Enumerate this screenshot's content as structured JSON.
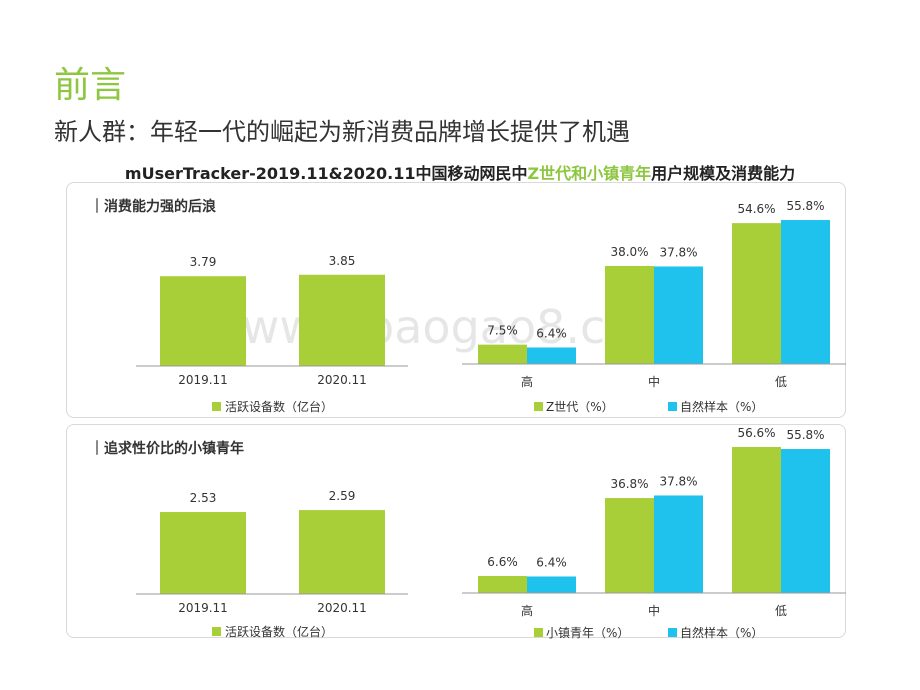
{
  "title": "前言",
  "subtitle": "新人群：年轻一代的崛起为新消费品牌增长提供了机遇",
  "heading": {
    "prefix": "mUserTracker-2019.11&2020.11中国移动网民中",
    "highlight": "Z世代和小镇青年",
    "suffix": "用户规模及消费能力"
  },
  "watermark": "www.baogao8.com",
  "colors": {
    "green": "#a8cf38",
    "blue": "#1ec2ec",
    "accent": "#8dc63f"
  },
  "chart_data": [
    {
      "type": "bar",
      "section": "｜消费能力强的后浪",
      "categories": [
        "2019.11",
        "2020.11"
      ],
      "series": [
        {
          "name": "活跃设备数（亿台）",
          "values": [
            3.79,
            3.85
          ]
        }
      ],
      "value_labels": [
        "3.79",
        "3.85"
      ]
    },
    {
      "type": "bar",
      "categories": [
        "高",
        "中",
        "低"
      ],
      "series": [
        {
          "name": "Z世代（%）",
          "values": [
            7.5,
            38.0,
            54.6
          ],
          "labels": [
            "7.5%",
            "38.0%",
            "54.6%"
          ]
        },
        {
          "name": "自然样本（%）",
          "values": [
            6.4,
            37.8,
            55.8
          ],
          "labels": [
            "6.4%",
            "37.8%",
            "55.8%"
          ]
        }
      ]
    },
    {
      "type": "bar",
      "section": "｜追求性价比的小镇青年",
      "categories": [
        "2019.11",
        "2020.11"
      ],
      "series": [
        {
          "name": "活跃设备数（亿台）",
          "values": [
            2.53,
            2.59
          ]
        }
      ],
      "value_labels": [
        "2.53",
        "2.59"
      ]
    },
    {
      "type": "bar",
      "categories": [
        "高",
        "中",
        "低"
      ],
      "series": [
        {
          "name": "小镇青年（%）",
          "values": [
            6.6,
            36.8,
            56.6
          ],
          "labels": [
            "6.6%",
            "36.8%",
            "56.6%"
          ]
        },
        {
          "name": "自然样本（%）",
          "values": [
            6.4,
            37.8,
            55.8
          ],
          "labels": [
            "6.4%",
            "37.8%",
            "55.8%"
          ]
        }
      ]
    }
  ]
}
